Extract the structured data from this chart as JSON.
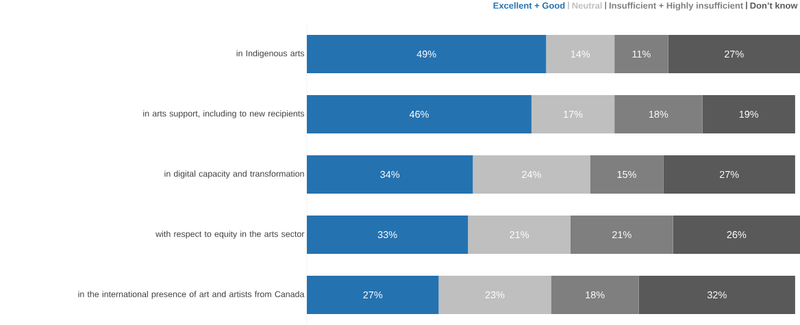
{
  "chart_data": {
    "type": "bar",
    "orientation": "horizontal",
    "stacked": true,
    "legend": "top",
    "categories": [
      "in Indigenous arts",
      "in arts support, including to new recipients",
      "in digital capacity and transformation",
      "with respect to equity in the arts sector",
      "in the international presence of art and artists from Canada"
    ],
    "series": [
      {
        "name": "Excellent + Good",
        "color": "#2572b0",
        "values": [
          49,
          46,
          34,
          33,
          27
        ],
        "value_labels": [
          "49%",
          "46%",
          "34%",
          "33%",
          "27%"
        ]
      },
      {
        "name": "Neutral",
        "color": "#bfbfbf",
        "values": [
          14,
          17,
          24,
          21,
          23
        ],
        "value_labels": [
          "14%",
          "17%",
          "24%",
          "21%",
          "23%"
        ]
      },
      {
        "name": "Insufficient + Highly insufficient",
        "color": "#7f7f7f",
        "values": [
          11,
          18,
          15,
          21,
          18
        ],
        "value_labels": [
          "11%",
          "18%",
          "15%",
          "21%",
          "18%"
        ]
      },
      {
        "name": "Don’t know",
        "color": "#595959",
        "values": [
          27,
          19,
          27,
          26,
          32
        ],
        "value_labels": [
          "27%",
          "19%",
          "27%",
          "26%",
          "32%"
        ]
      }
    ]
  }
}
